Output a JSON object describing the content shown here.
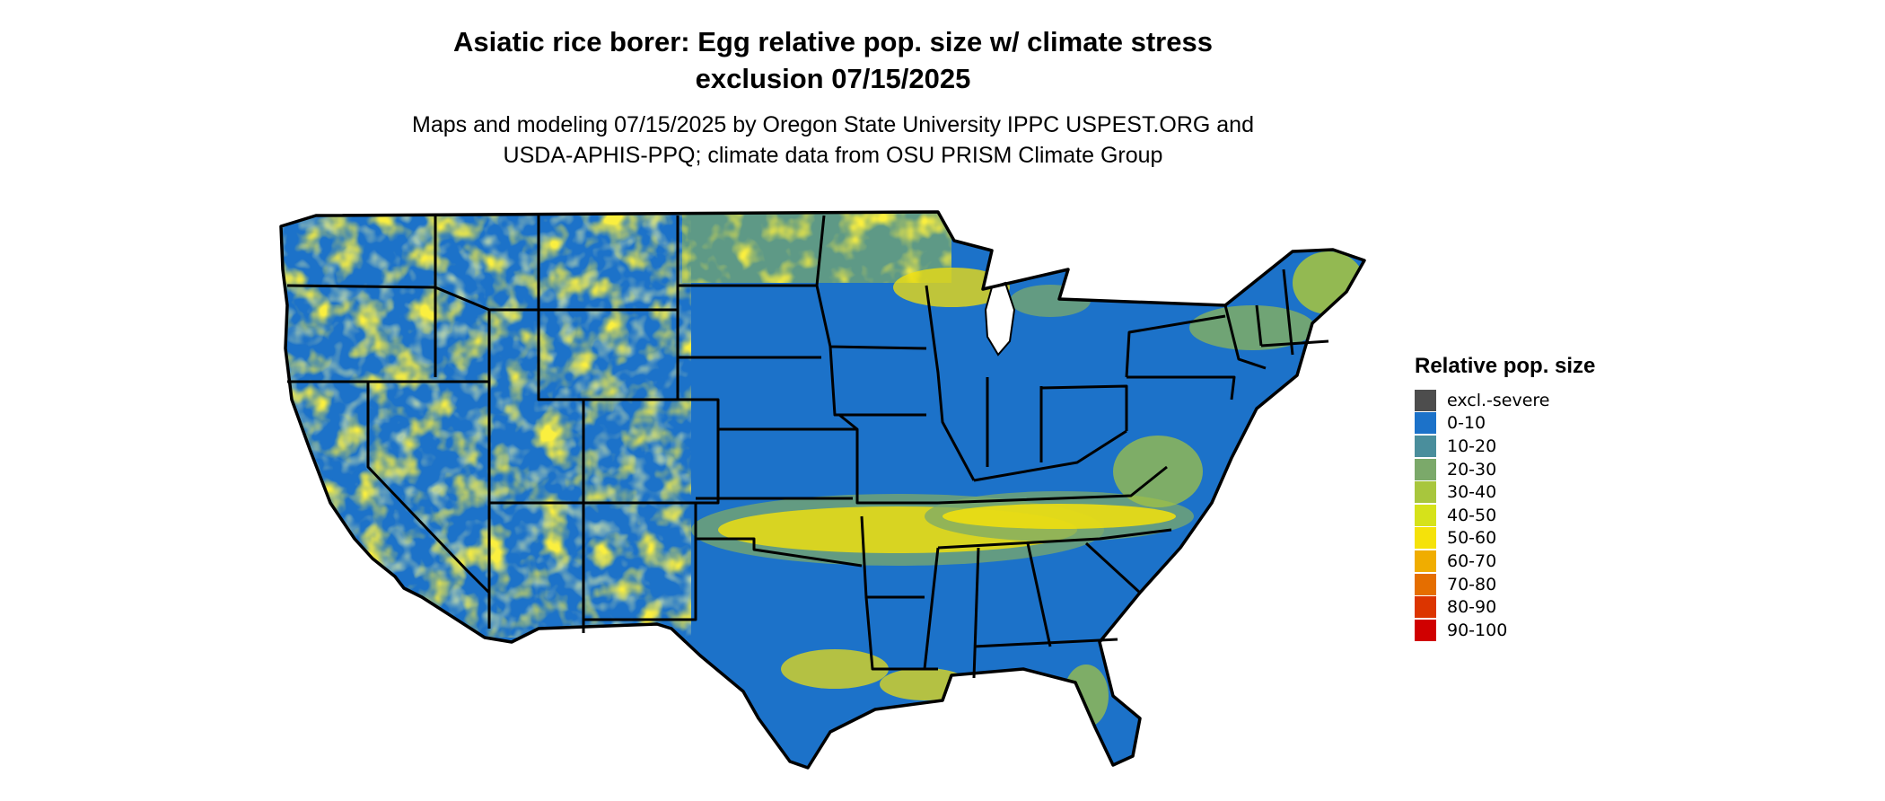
{
  "title_line1": "Asiatic rice borer: Egg relative pop. size w/ climate stress",
  "title_line2": "exclusion 07/15/2025",
  "subtitle_line1": "Maps and modeling 07/15/2025 by Oregon State University IPPC USPEST.ORG and",
  "subtitle_line2": "USDA-APHIS-PPQ; climate data from OSU PRISM Climate Group",
  "legend": {
    "title": "Relative pop. size",
    "items": [
      {
        "label": "excl.-severe",
        "color": "#4d4d4d"
      },
      {
        "label": "0-10",
        "color": "#1c72c9"
      },
      {
        "label": "10-20",
        "color": "#4a8e9c"
      },
      {
        "label": "20-30",
        "color": "#7ba96a"
      },
      {
        "label": "30-40",
        "color": "#a8c63d"
      },
      {
        "label": "40-50",
        "color": "#d6e21a"
      },
      {
        "label": "50-60",
        "color": "#f5e20a"
      },
      {
        "label": "60-70",
        "color": "#f0ad00"
      },
      {
        "label": "70-80",
        "color": "#e56e00"
      },
      {
        "label": "80-90",
        "color": "#dc3500"
      },
      {
        "label": "90-100",
        "color": "#d00000"
      }
    ]
  }
}
